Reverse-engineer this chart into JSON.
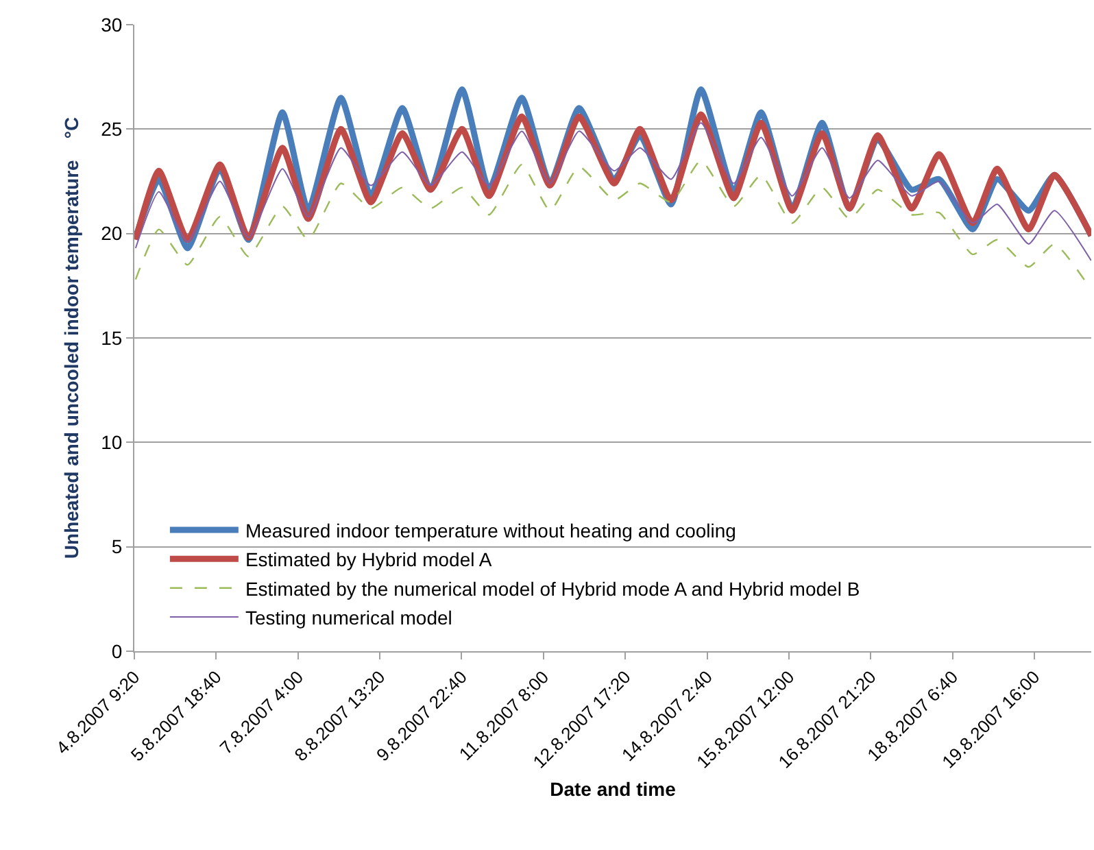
{
  "chart_data": {
    "type": "line",
    "xlabel": "Date and time",
    "ylabel": "Unheated and uncooled indoor temperature    °C",
    "x": [
      "2007-08-04T09:50",
      "2007-08-04T19:20",
      "2007-08-05T07:00",
      "2007-08-05T20:10",
      "2007-08-06T07:50",
      "2007-08-06T21:40",
      "2007-08-07T08:10",
      "2007-08-07T21:30",
      "2007-08-08T09:40",
      "2007-08-08T22:30",
      "2007-08-09T10:00",
      "2007-08-09T22:50",
      "2007-08-10T09:50",
      "2007-08-10T23:10",
      "2007-08-11T10:40",
      "2007-08-11T22:30",
      "2007-08-12T12:50",
      "2007-08-12T23:20",
      "2007-08-13T12:00",
      "2007-08-14T00:10",
      "2007-08-14T13:30",
      "2007-08-15T00:40",
      "2007-08-15T13:20",
      "2007-08-16T01:30",
      "2007-08-16T12:40",
      "2007-08-17T00:10",
      "2007-08-17T14:00",
      "2007-08-18T01:10",
      "2007-08-18T14:50",
      "2007-08-19T00:50",
      "2007-08-19T13:40",
      "2007-08-20T00:10",
      "2007-08-20T15:10"
    ],
    "series": [
      {
        "name": "Measured indoor temperature without heating and cooling",
        "color": "#4a7ebb",
        "line_style": "solid",
        "values": [
          19.8,
          22.6,
          19.3,
          23.1,
          19.7,
          25.8,
          21.1,
          26.5,
          21.8,
          26.0,
          22.1,
          26.9,
          22.1,
          26.5,
          22.4,
          26.0,
          22.6,
          24.7,
          21.4,
          26.9,
          22.0,
          25.8,
          21.2,
          25.3,
          21.2,
          24.5,
          22.1,
          22.6,
          20.2,
          22.6,
          21.1,
          22.8,
          19.9
        ]
      },
      {
        "name": "Estimated by Hybrid model A",
        "color": "#be4b48",
        "line_style": "solid",
        "values": [
          19.7,
          23.0,
          19.7,
          23.3,
          19.8,
          24.1,
          20.7,
          25.0,
          21.5,
          24.8,
          22.1,
          25.0,
          21.8,
          25.6,
          22.3,
          25.6,
          22.4,
          25.0,
          21.6,
          25.7,
          21.7,
          25.3,
          21.1,
          24.8,
          21.2,
          24.7,
          21.2,
          23.8,
          20.5,
          23.1,
          20.2,
          22.8,
          19.9
        ]
      },
      {
        "name": "Estimated by the numerical model of Hybrid mode A and Hybrid model B",
        "color": "#9bbb59",
        "line_style": "dashed",
        "values": [
          17.8,
          20.2,
          18.5,
          20.8,
          18.9,
          21.3,
          19.7,
          22.4,
          21.2,
          22.2,
          21.2,
          22.2,
          20.9,
          23.3,
          21.1,
          23.2,
          21.6,
          22.4,
          21.5,
          23.5,
          21.3,
          22.8,
          20.5,
          22.2,
          20.7,
          22.1,
          20.9,
          21.0,
          19.0,
          19.7,
          18.4,
          19.5,
          17.3
        ]
      },
      {
        "name": "Testing numerical model",
        "color": "#7f5fa8",
        "line_style": "solid",
        "values": [
          19.3,
          22.0,
          19.6,
          22.5,
          19.8,
          23.1,
          20.8,
          24.1,
          22.3,
          23.9,
          22.3,
          23.9,
          22.3,
          24.9,
          22.4,
          24.9,
          23.0,
          24.1,
          22.6,
          25.3,
          22.4,
          24.6,
          21.8,
          24.1,
          21.7,
          23.5,
          21.8,
          22.5,
          20.5,
          21.4,
          19.5,
          21.1,
          18.7
        ]
      }
    ],
    "xlim": [
      "2007-08-04T09:20",
      "2007-08-20T15:10"
    ],
    "xticks": [
      {
        "value": "2007-08-04T09:20",
        "label": "4.8.2007 9:20"
      },
      {
        "value": "2007-08-05T18:40",
        "label": "5.8.2007 18:40"
      },
      {
        "value": "2007-08-07T04:00",
        "label": "7.8.2007 4:00"
      },
      {
        "value": "2007-08-08T13:20",
        "label": "8.8.2007 13:20"
      },
      {
        "value": "2007-08-09T22:40",
        "label": "9.8.2007 22:40"
      },
      {
        "value": "2007-08-11T08:00",
        "label": "11.8.2007 8:00"
      },
      {
        "value": "2007-08-12T17:20",
        "label": "12.8.2007 17:20"
      },
      {
        "value": "2007-08-14T02:40",
        "label": "14.8.2007 2:40"
      },
      {
        "value": "2007-08-15T12:00",
        "label": "15.8.2007 12:00"
      },
      {
        "value": "2007-08-16T21:20",
        "label": "16.8.2007 21:20"
      },
      {
        "value": "2007-08-18T06:40",
        "label": "18.8.2007 6:40"
      },
      {
        "value": "2007-08-19T16:00",
        "label": "19.8.2007 16:00"
      }
    ],
    "ylim": [
      0,
      30
    ],
    "yticks": [
      0,
      5,
      10,
      15,
      20,
      25,
      30
    ],
    "grid": "y",
    "legend": "bottom left",
    "marker": "none"
  }
}
